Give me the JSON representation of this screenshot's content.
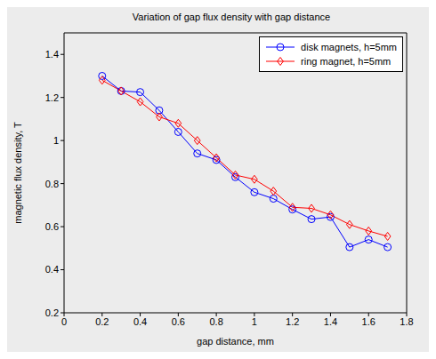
{
  "chart_data": {
    "type": "line",
    "title": "Variation of gap flux density with gap distance",
    "x_label": "gap distance, mm",
    "y_label": "magnetic flux density, T",
    "x": [
      0.2,
      0.3,
      0.4,
      0.5,
      0.6,
      0.7,
      0.8,
      0.9,
      1.0,
      1.1,
      1.2,
      1.3,
      1.4,
      1.5,
      1.6,
      1.7
    ],
    "series": [
      {
        "name": "disk magnets, h=5mm",
        "color": "#0000ff",
        "marker": "circle",
        "values": [
          1.3,
          1.23,
          1.225,
          1.14,
          1.04,
          0.94,
          0.91,
          0.83,
          0.76,
          0.73,
          0.68,
          0.635,
          0.645,
          0.505,
          0.54,
          0.505
        ]
      },
      {
        "name": "ring magnet, h=5mm",
        "color": "#ff0000",
        "marker": "diamond",
        "values": [
          1.28,
          1.23,
          1.18,
          1.11,
          1.08,
          1.0,
          0.92,
          0.84,
          0.82,
          0.765,
          0.69,
          0.685,
          0.655,
          0.61,
          0.58,
          0.555
        ]
      }
    ],
    "xlim": [
      0,
      1.8
    ],
    "xticks": [
      0,
      0.2,
      0.4,
      0.6,
      0.8,
      1,
      1.2,
      1.4,
      1.6,
      1.8
    ],
    "ylim": [
      0.2,
      1.5
    ],
    "yticks": [
      0.2,
      0.4,
      0.6,
      0.8,
      1,
      1.2,
      1.4
    ],
    "grid": false,
    "legend": "northeast"
  }
}
